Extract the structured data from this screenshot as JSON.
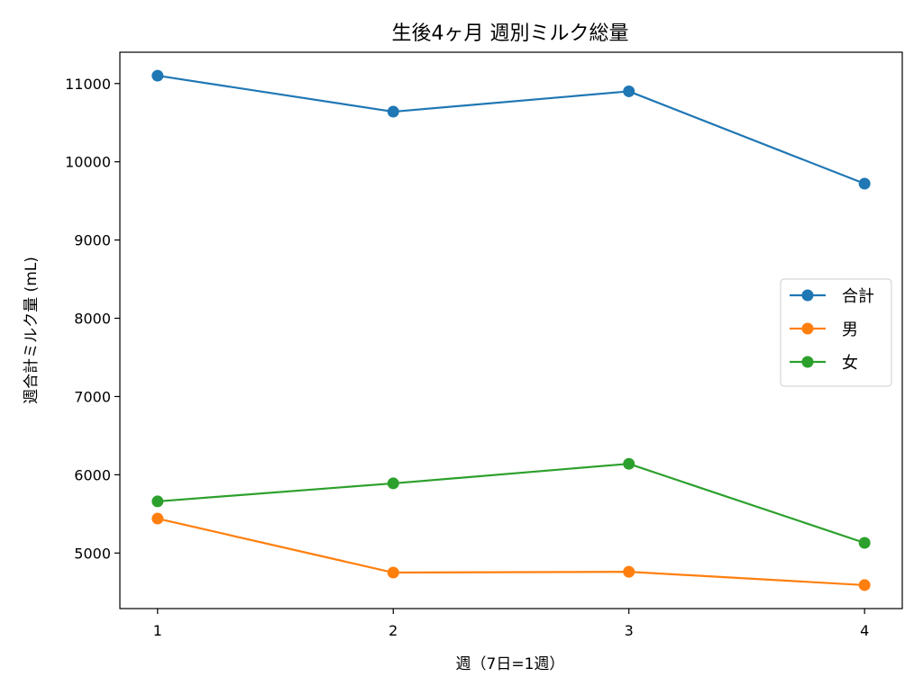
{
  "chart_data": {
    "type": "line",
    "title": "生後4ヶ月 週別ミルク総量",
    "xlabel": "週（7日=1週）",
    "ylabel": "週合計ミルク量 (mL)",
    "x": [
      1,
      2,
      3,
      4
    ],
    "x_tick_labels": [
      "1",
      "2",
      "3",
      "4"
    ],
    "y_ticks": [
      5000,
      6000,
      7000,
      8000,
      9000,
      10000,
      11000
    ],
    "y_tick_labels": [
      "5000",
      "6000",
      "7000",
      "8000",
      "9000",
      "10000",
      "11000"
    ],
    "xlim": [
      0.84,
      4.16
    ],
    "ylim": [
      4290,
      11400
    ],
    "grid": false,
    "legend_position": "center-right",
    "series": [
      {
        "name": "合計",
        "color": "#1f77b4",
        "values": [
          11100,
          10640,
          10900,
          9720
        ]
      },
      {
        "name": "男",
        "color": "#ff7f0e",
        "values": [
          5440,
          4750,
          4760,
          4590
        ]
      },
      {
        "name": "女",
        "color": "#2ca02c",
        "values": [
          5660,
          5890,
          6140,
          5130
        ]
      }
    ]
  }
}
